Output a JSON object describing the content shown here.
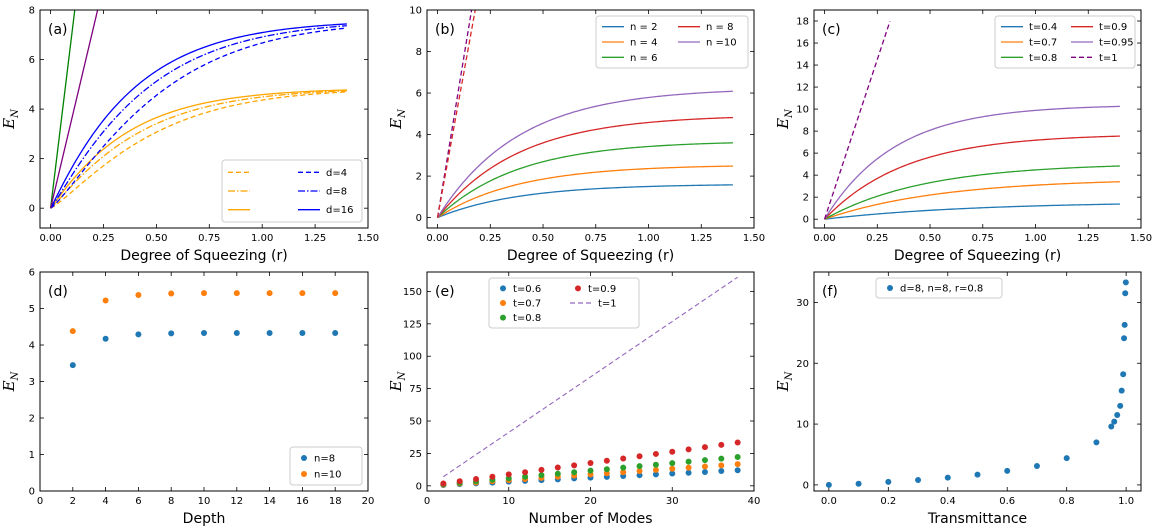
{
  "figure": {
    "panels": [
      {
        "id": "a",
        "label": "(a)",
        "xlabel": "Degree of Squeezing (r)",
        "ylabel": "E_N"
      },
      {
        "id": "b",
        "label": "(b)",
        "xlabel": "Degree of Squeezing (r)",
        "ylabel": "E_N"
      },
      {
        "id": "c",
        "label": "(c)",
        "xlabel": "Degree of Squeezing (r)",
        "ylabel": "E_N"
      },
      {
        "id": "d",
        "label": "(d)",
        "xlabel": "Depth",
        "ylabel": "E_N"
      },
      {
        "id": "e",
        "label": "(e)",
        "xlabel": "Number of Modes",
        "ylabel": "E_N"
      },
      {
        "id": "f",
        "label": "(f)",
        "xlabel": "Transmittance",
        "ylabel": "E_N"
      }
    ]
  },
  "chart_data": [
    {
      "panel": "a",
      "type": "line",
      "title": "(a)",
      "xlabel": "Degree of Squeezing (r)",
      "ylabel": "E_N",
      "xlim": [
        -0.05,
        1.5
      ],
      "ylim": [
        -0.8,
        8
      ],
      "xticks": [
        0.0,
        0.25,
        0.5,
        0.75,
        1.0,
        1.25,
        1.5
      ],
      "xticklabels": [
        "0.00",
        "0.25",
        "0.50",
        "0.75",
        "1.00",
        "1.25",
        "1.50"
      ],
      "yticks": [
        0,
        2,
        4,
        6,
        8
      ],
      "yticklabels": [
        "0",
        "2",
        "4",
        "6",
        "8"
      ],
      "legend_position": "lower-right",
      "series": [
        {
          "name": "",
          "color": "#ffa500",
          "style": "dashed",
          "legend": true,
          "limit": 4.85,
          "rate": 2.3,
          "p": 1.2
        },
        {
          "name": "",
          "color": "#ffa500",
          "style": "dashdot",
          "legend": true,
          "limit": 4.85,
          "rate": 2.6,
          "p": 1.1
        },
        {
          "name": "",
          "color": "#ffa500",
          "style": "solid",
          "legend": true,
          "limit": 4.85,
          "rate": 2.9,
          "p": 1.05
        },
        {
          "name": "d=4",
          "color": "#0000ff",
          "style": "dashed",
          "legend": true,
          "limit": 7.6,
          "rate": 2.1,
          "p": 1.2
        },
        {
          "name": "d=8",
          "color": "#0000ff",
          "style": "dashdot",
          "legend": true,
          "limit": 7.6,
          "rate": 2.4,
          "p": 1.1
        },
        {
          "name": "d=16",
          "color": "#0000ff",
          "style": "solid",
          "legend": true,
          "limit": 7.6,
          "rate": 2.7,
          "p": 1.05
        },
        {
          "name": "",
          "color": "#008000",
          "style": "solid",
          "legend": false,
          "linear_slope": 70
        },
        {
          "name": "",
          "color": "#800080",
          "style": "solid",
          "legend": false,
          "linear_slope": 36
        }
      ]
    },
    {
      "panel": "b",
      "type": "line",
      "title": "(b)",
      "xlabel": "Degree of Squeezing (r)",
      "ylabel": "E_N",
      "xlim": [
        -0.05,
        1.5
      ],
      "ylim": [
        -0.5,
        10
      ],
      "xticks": [
        0.0,
        0.25,
        0.5,
        0.75,
        1.0,
        1.25,
        1.5
      ],
      "xticklabels": [
        "0.00",
        "0.25",
        "0.50",
        "0.75",
        "1.00",
        "1.25",
        "1.50"
      ],
      "yticks": [
        0,
        2,
        4,
        6,
        8,
        10
      ],
      "yticklabels": [
        "0",
        "2",
        "4",
        "6",
        "8",
        "10"
      ],
      "legend_position": "upper-right",
      "series": [
        {
          "name": "n = 2",
          "color": "#1f77b4",
          "style": "solid",
          "legend": true,
          "limit": 1.62,
          "rate": 2.6,
          "p": 1.0
        },
        {
          "name": "n = 4",
          "color": "#ff7f0e",
          "style": "solid",
          "legend": true,
          "limit": 2.55,
          "rate": 2.6,
          "p": 1.0
        },
        {
          "name": "n = 6",
          "color": "#2ca02c",
          "style": "solid",
          "legend": true,
          "limit": 3.7,
          "rate": 2.6,
          "p": 1.0
        },
        {
          "name": "n = 8",
          "color": "#d62728",
          "style": "solid",
          "legend": true,
          "limit": 4.95,
          "rate": 2.6,
          "p": 1.0
        },
        {
          "name": "n =10",
          "color": "#9467bd",
          "style": "solid",
          "legend": true,
          "limit": 6.25,
          "rate": 2.6,
          "p": 1.0
        },
        {
          "name": "",
          "color": "#800080",
          "style": "dashed",
          "legend": false,
          "linear_slope": 62
        },
        {
          "name": "",
          "color": "#d62728",
          "style": "dashed",
          "legend": false,
          "linear_slope": 56
        }
      ]
    },
    {
      "panel": "c",
      "type": "line",
      "title": "(c)",
      "xlabel": "Degree of Squeezing (r)",
      "ylabel": "E_N",
      "xlim": [
        -0.05,
        1.5
      ],
      "ylim": [
        -0.8,
        19
      ],
      "xticks": [
        0.0,
        0.25,
        0.5,
        0.75,
        1.0,
        1.25,
        1.5
      ],
      "xticklabels": [
        "0.00",
        "0.25",
        "0.50",
        "0.75",
        "1.00",
        "1.25",
        "1.50"
      ],
      "yticks": [
        0,
        2,
        4,
        6,
        8,
        10,
        12,
        14,
        16,
        18
      ],
      "yticklabels": [
        "0",
        "2",
        "4",
        "6",
        "8",
        "10",
        "12",
        "14",
        "16",
        "18"
      ],
      "legend_position": "upper-right",
      "series": [
        {
          "name": "t=0.4",
          "color": "#1f77b4",
          "style": "solid",
          "legend": true,
          "limit": 1.6,
          "rate": 1.4,
          "p": 1.0
        },
        {
          "name": "t=0.7",
          "color": "#ff7f0e",
          "style": "solid",
          "legend": true,
          "limit": 3.7,
          "rate": 1.8,
          "p": 1.0
        },
        {
          "name": "t=0.8",
          "color": "#2ca02c",
          "style": "solid",
          "legend": true,
          "limit": 5.1,
          "rate": 2.1,
          "p": 1.0
        },
        {
          "name": "t=0.9",
          "color": "#d62728",
          "style": "solid",
          "legend": true,
          "limit": 7.75,
          "rate": 2.6,
          "p": 1.0
        },
        {
          "name": "t=0.95",
          "color": "#9467bd",
          "style": "solid",
          "legend": true,
          "limit": 10.4,
          "rate": 3.0,
          "p": 1.0
        },
        {
          "name": "t=1",
          "color": "#800080",
          "style": "dashed",
          "legend": true,
          "linear_slope": 58,
          "xmax": 0.31
        }
      ]
    },
    {
      "panel": "d",
      "type": "scatter",
      "title": "(d)",
      "xlabel": "Depth",
      "ylabel": "E_N",
      "xlim": [
        0,
        20
      ],
      "ylim": [
        0,
        6
      ],
      "xticks": [
        0,
        2,
        4,
        6,
        8,
        10,
        12,
        14,
        16,
        18,
        20
      ],
      "xticklabels": [
        "0",
        "2",
        "4",
        "6",
        "8",
        "10",
        "12",
        "14",
        "16",
        "18",
        "20"
      ],
      "yticks": [
        0,
        1,
        2,
        3,
        4,
        5,
        6
      ],
      "yticklabels": [
        "0",
        "1",
        "2",
        "3",
        "4",
        "5",
        "6"
      ],
      "legend_position": "lower-right",
      "x": [
        2,
        4,
        6,
        8,
        10,
        12,
        14,
        16,
        18
      ],
      "series": [
        {
          "name": "n=8",
          "color": "#1f77b4",
          "values": [
            3.45,
            4.17,
            4.29,
            4.32,
            4.33,
            4.33,
            4.33,
            4.33,
            4.33
          ]
        },
        {
          "name": "n=10",
          "color": "#ff7f0e",
          "values": [
            4.38,
            5.22,
            5.37,
            5.41,
            5.42,
            5.42,
            5.42,
            5.42,
            5.42
          ]
        }
      ]
    },
    {
      "panel": "e",
      "type": "scatter",
      "title": "(e)",
      "xlabel": "Number of Modes",
      "ylabel": "E_N",
      "xlim": [
        0,
        40
      ],
      "ylim": [
        -4,
        165
      ],
      "xticks": [
        0,
        10,
        20,
        30,
        40
      ],
      "xticklabels": [
        "0",
        "10",
        "20",
        "30",
        "40"
      ],
      "yticks": [
        0,
        25,
        50,
        75,
        100,
        125,
        150
      ],
      "yticklabels": [
        "0",
        "25",
        "50",
        "75",
        "100",
        "125",
        "150"
      ],
      "legend_position": "top-left",
      "x": [
        2,
        4,
        6,
        8,
        10,
        12,
        14,
        16,
        18,
        20,
        22,
        24,
        26,
        28,
        30,
        32,
        34,
        36,
        38
      ],
      "series": [
        {
          "name": "t=0.6",
          "color": "#1f77b4",
          "values": [
            0.6,
            1.3,
            1.9,
            2.5,
            3.2,
            3.8,
            4.4,
            5.0,
            5.7,
            6.3,
            6.9,
            7.6,
            8.2,
            8.8,
            9.5,
            10.1,
            10.7,
            11.4,
            12.0
          ]
        },
        {
          "name": "t=0.7",
          "color": "#ff7f0e",
          "values": [
            0.9,
            1.8,
            2.6,
            3.5,
            4.4,
            5.3,
            6.1,
            7.0,
            7.9,
            8.8,
            9.7,
            10.5,
            11.4,
            12.3,
            13.2,
            14.0,
            14.9,
            15.8,
            16.7
          ]
        },
        {
          "name": "t=0.8",
          "color": "#2ca02c",
          "values": [
            1.2,
            2.3,
            3.5,
            4.7,
            5.8,
            7.0,
            8.2,
            9.3,
            10.5,
            11.7,
            12.8,
            14.0,
            15.2,
            16.3,
            17.5,
            18.7,
            19.8,
            21.0,
            22.2
          ]
        },
        {
          "name": "t=0.9",
          "color": "#d62728",
          "values": [
            1.8,
            3.5,
            5.3,
            7.0,
            8.8,
            10.5,
            12.3,
            14.1,
            15.8,
            17.6,
            19.3,
            21.1,
            22.8,
            24.6,
            26.3,
            28.1,
            29.9,
            31.6,
            33.4
          ]
        },
        {
          "name": "t=1",
          "color": "#9467bd",
          "style": "dashed",
          "line_from": [
            2,
            7
          ],
          "line_to": [
            38,
            161
          ]
        }
      ]
    },
    {
      "panel": "f",
      "type": "scatter",
      "title": "(f)",
      "xlabel": "Transmittance",
      "ylabel": "E_N",
      "xlim": [
        -0.05,
        1.05
      ],
      "ylim": [
        -1,
        35
      ],
      "xticks": [
        0.0,
        0.2,
        0.4,
        0.6,
        0.8,
        1.0
      ],
      "xticklabels": [
        "0.0",
        "0.2",
        "0.4",
        "0.6",
        "0.8",
        "1.0"
      ],
      "yticks": [
        0,
        10,
        20,
        30
      ],
      "yticklabels": [
        "0",
        "10",
        "20",
        "30"
      ],
      "legend_position": "top-left",
      "series": [
        {
          "name": "d=8, n=8, r=0.8",
          "color": "#1f77b4",
          "x": [
            0.0,
            0.1,
            0.2,
            0.3,
            0.4,
            0.5,
            0.6,
            0.7,
            0.8,
            0.9,
            0.95,
            0.96,
            0.97,
            0.98,
            0.985,
            0.99,
            0.993,
            0.995,
            0.997,
            0.999
          ],
          "values": [
            0.0,
            0.2,
            0.5,
            0.8,
            1.2,
            1.7,
            2.3,
            3.1,
            4.4,
            7.0,
            9.6,
            10.4,
            11.5,
            13.0,
            15.5,
            18.2,
            24.1,
            26.3,
            31.5,
            33.3
          ]
        }
      ]
    }
  ]
}
